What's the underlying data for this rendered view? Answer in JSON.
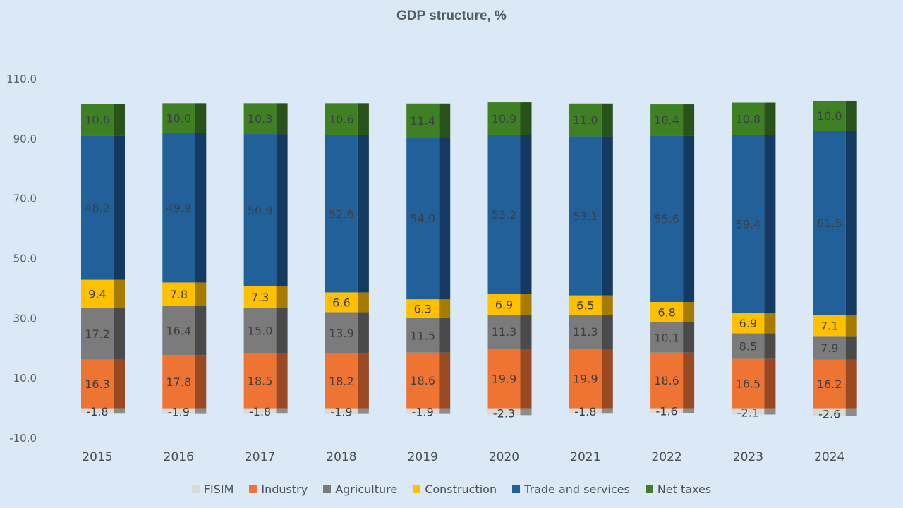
{
  "chart_data": {
    "type": "bar",
    "stacked": true,
    "title": "GDP structure, %",
    "xlabel": "",
    "ylabel": "",
    "categories": [
      "2015",
      "2016",
      "2017",
      "2018",
      "2019",
      "2020",
      "2021",
      "2022",
      "2023",
      "2024"
    ],
    "ylim": [
      -10,
      110
    ],
    "yticks": [
      "110.0",
      "90.0",
      "70.0",
      "50.0",
      "30.0",
      "10.0",
      "-10.0"
    ],
    "grid": false,
    "legend_position": "bottom",
    "series": [
      {
        "name": "FISIM",
        "color": "#d9d9d9",
        "side_color": "#8c8c8c",
        "values": [
          -1.8,
          -1.9,
          -1.8,
          -1.9,
          -1.9,
          -2.3,
          -1.8,
          -1.6,
          -2.1,
          -2.6
        ]
      },
      {
        "name": "Industry",
        "color": "#ed7433",
        "side_color": "#9a4a22",
        "values": [
          16.3,
          17.8,
          18.5,
          18.2,
          18.6,
          19.9,
          19.9,
          18.6,
          16.5,
          16.2
        ]
      },
      {
        "name": "Agriculture",
        "color": "#7b7b7b",
        "side_color": "#4a4a4a",
        "values": [
          17.2,
          16.4,
          15.0,
          13.9,
          11.5,
          11.3,
          11.3,
          10.1,
          8.5,
          7.9
        ]
      },
      {
        "name": "Construction",
        "color": "#ffc000",
        "side_color": "#a67c00",
        "values": [
          9.4,
          7.8,
          7.3,
          6.6,
          6.3,
          6.9,
          6.5,
          6.8,
          6.9,
          7.1
        ]
      },
      {
        "name": "Trade and services",
        "color": "#22609a",
        "side_color": "#153a62",
        "values": [
          48.2,
          49.9,
          50.8,
          52.6,
          54.0,
          53.2,
          53.1,
          55.6,
          59.4,
          61.5
        ]
      },
      {
        "name": "Net taxes",
        "color": "#3f8025",
        "side_color": "#27531a",
        "values": [
          10.6,
          10.0,
          10.3,
          10.6,
          11.4,
          10.9,
          11.0,
          10.4,
          10.8,
          10.0
        ]
      }
    ]
  }
}
